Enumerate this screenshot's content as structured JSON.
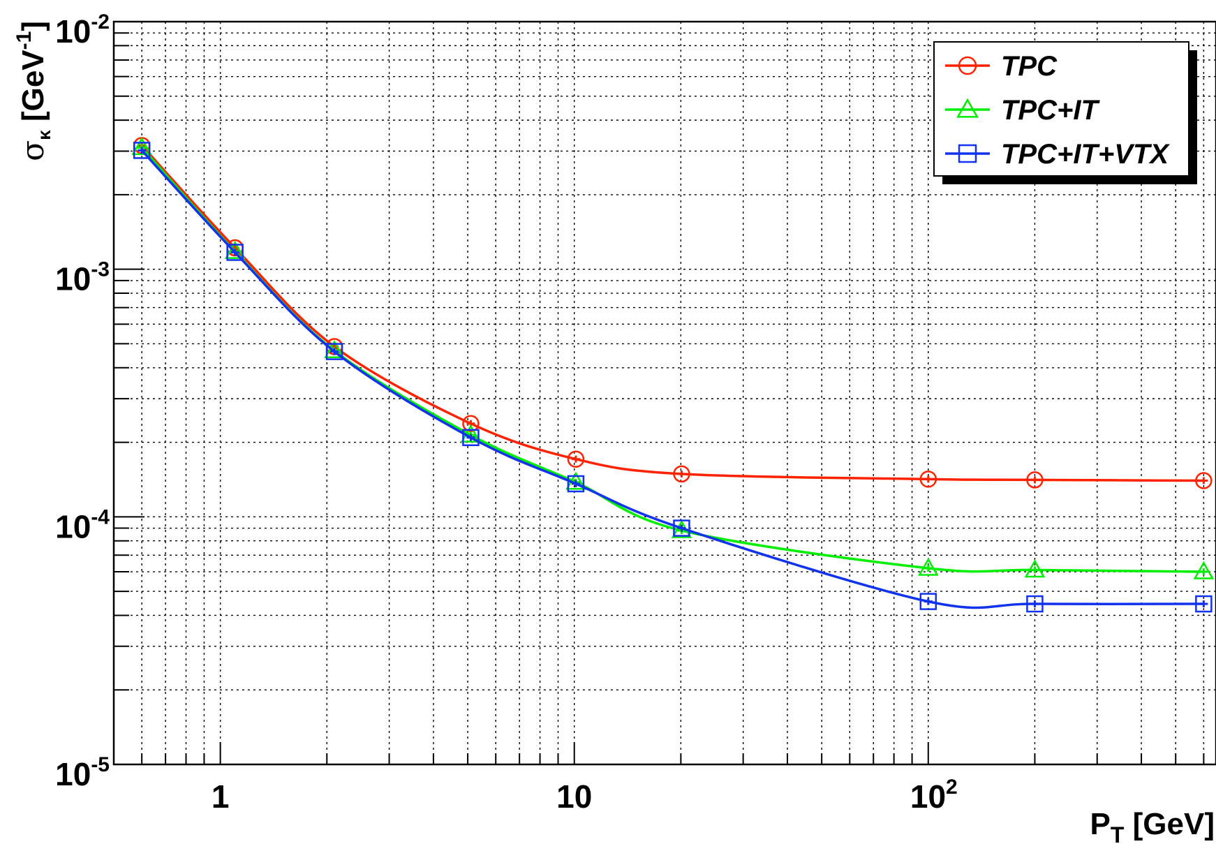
{
  "chart_data": {
    "type": "line",
    "x_scale": "log",
    "y_scale": "log",
    "xlim": [
      0.5,
      650
    ],
    "ylim": [
      1e-05,
      0.01
    ],
    "grid": true,
    "legend_position": "top-right",
    "xlabel": {
      "main": "P",
      "sub": "T",
      "rest": " [GeV]"
    },
    "ylabel": {
      "main": "σ",
      "sub": "κ",
      "rest": " [GeV",
      "sup": "-1",
      "close": "]"
    },
    "x_tick_labels": [
      {
        "value": 1,
        "base": "1",
        "exp": ""
      },
      {
        "value": 10,
        "base": "10",
        "exp": ""
      },
      {
        "value": 100,
        "base": "10",
        "exp": "2"
      }
    ],
    "y_tick_labels": [
      {
        "value": 1e-05,
        "base": "10",
        "exp": "-5"
      },
      {
        "value": 0.0001,
        "base": "10",
        "exp": "-4"
      },
      {
        "value": 0.001,
        "base": "10",
        "exp": "-3"
      },
      {
        "value": 0.01,
        "base": "10",
        "exp": "-2"
      }
    ],
    "series": [
      {
        "name": "TPC",
        "color": "#ff2200",
        "marker": "circle",
        "x": [
          0.6,
          1.1,
          2.1,
          5.1,
          10.1,
          20.1,
          100,
          200,
          600
        ],
        "y": [
          0.00316,
          0.00122,
          0.000487,
          0.000238,
          0.000171,
          0.000149,
          0.000142,
          0.000141,
          0.00014
        ]
      },
      {
        "name": "TPC+IT",
        "color": "#00ee00",
        "marker": "triangle",
        "x": [
          0.6,
          1.1,
          2.1,
          5.1,
          10.1,
          20.1,
          100,
          200,
          600
        ],
        "y": [
          0.0031,
          0.00118,
          0.000469,
          0.000214,
          0.000138,
          8.8e-05,
          6.2e-05,
          6.1e-05,
          6e-05
        ]
      },
      {
        "name": "TPC+IT+VTX",
        "color": "#1133ee",
        "marker": "square",
        "x": [
          0.6,
          1.1,
          2.1,
          5.1,
          10.1,
          20.1,
          100,
          200,
          600
        ],
        "y": [
          0.00302,
          0.00117,
          0.000465,
          0.000209,
          0.000136,
          9e-05,
          4.55e-05,
          4.45e-05,
          4.45e-05
        ]
      }
    ]
  }
}
